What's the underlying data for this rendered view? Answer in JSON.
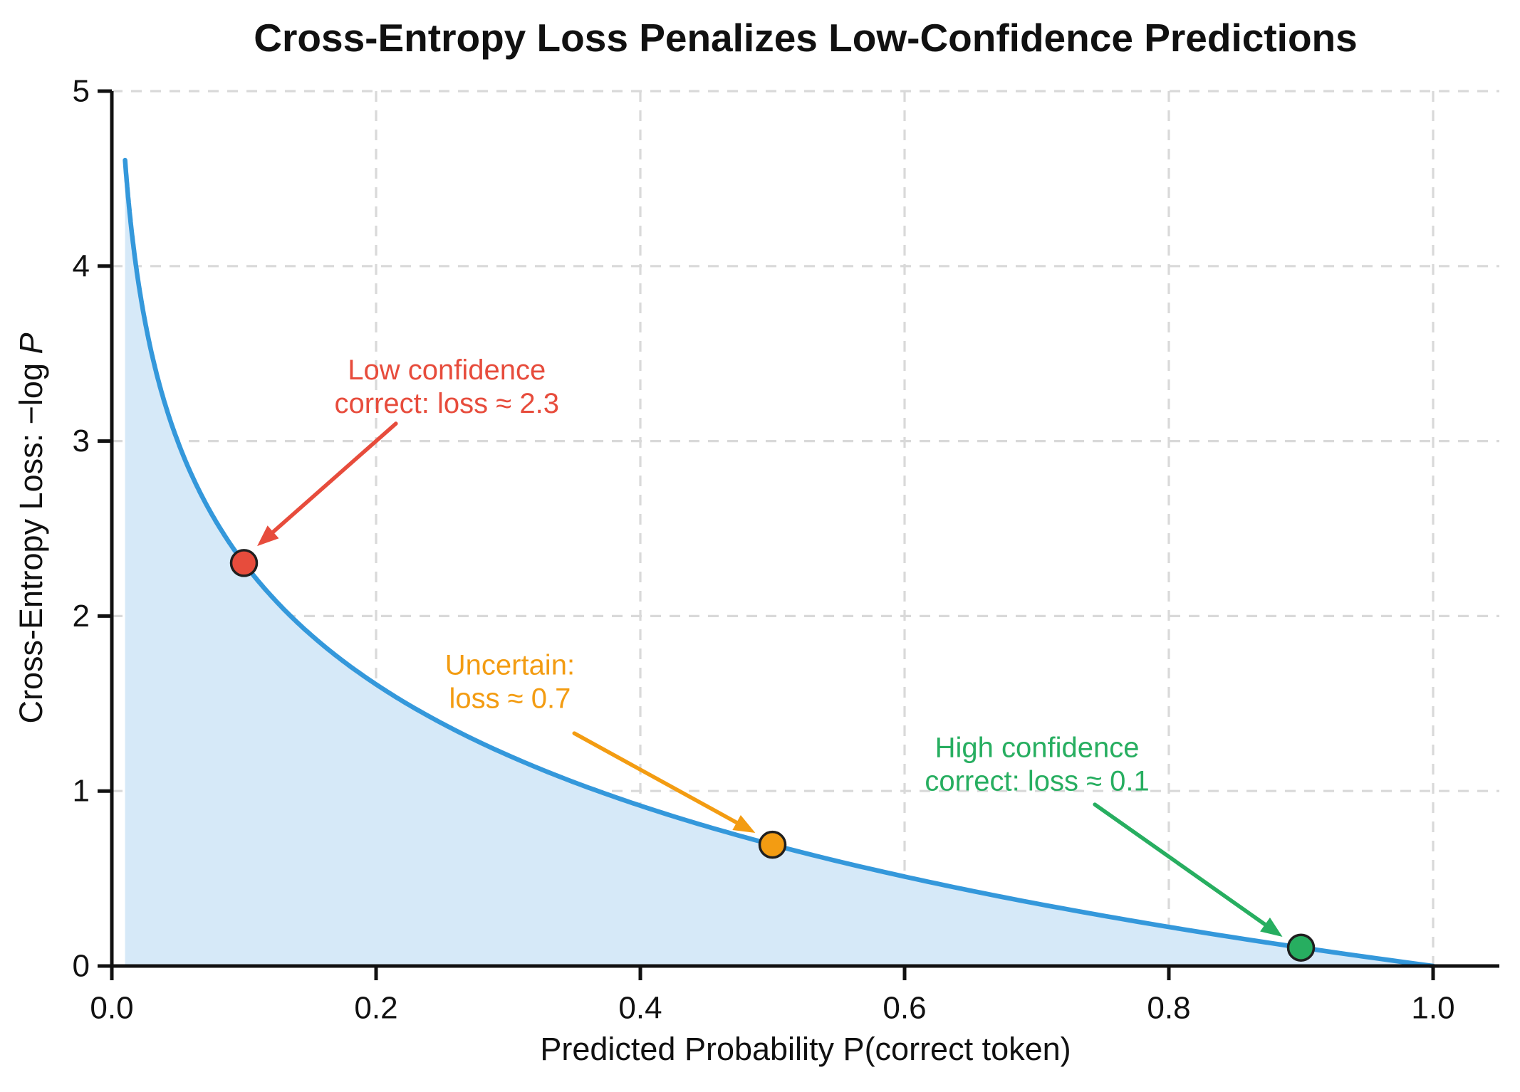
{
  "page": {
    "title": "Cross-Entropy Loss Penalizes Low-Confidence Predictions"
  },
  "chart_data": {
    "type": "line",
    "title": "Cross-Entropy Loss Penalizes Low-Confidence Predictions",
    "xlabel": "Predicted Probability P(correct token)",
    "ylabel_prefix": "Cross-Entropy Loss: −log ",
    "ylabel_var": "P",
    "xlim": [
      0,
      1.05
    ],
    "ylim": [
      0,
      5
    ],
    "grid": {
      "show": true,
      "x_values": [
        0.2,
        0.4,
        0.6,
        0.8,
        1.0
      ],
      "y_values": [
        1,
        2,
        3,
        4,
        5
      ]
    },
    "xticks": [
      {
        "value": 0.0,
        "label": "0.0"
      },
      {
        "value": 0.2,
        "label": "0.2"
      },
      {
        "value": 0.4,
        "label": "0.4"
      },
      {
        "value": 0.6,
        "label": "0.6"
      },
      {
        "value": 0.8,
        "label": "0.8"
      },
      {
        "value": 1.0,
        "label": "1.0"
      }
    ],
    "yticks": [
      {
        "value": 0,
        "label": "0"
      },
      {
        "value": 1,
        "label": "1"
      },
      {
        "value": 2,
        "label": "2"
      },
      {
        "value": 3,
        "label": "3"
      },
      {
        "value": 4,
        "label": "4"
      },
      {
        "value": 5,
        "label": "5"
      }
    ],
    "curve": {
      "name": "cross_entropy_loss",
      "formula": "loss = −log(p)",
      "p_min": 0.01,
      "p_max": 1.0,
      "samples": [
        {
          "p": 0.01,
          "loss": 4.61
        },
        {
          "p": 0.02,
          "loss": 3.91
        },
        {
          "p": 0.05,
          "loss": 3.0
        },
        {
          "p": 0.1,
          "loss": 2.3
        },
        {
          "p": 0.15,
          "loss": 1.9
        },
        {
          "p": 0.2,
          "loss": 1.61
        },
        {
          "p": 0.3,
          "loss": 1.2
        },
        {
          "p": 0.4,
          "loss": 0.92
        },
        {
          "p": 0.5,
          "loss": 0.69
        },
        {
          "p": 0.6,
          "loss": 0.51
        },
        {
          "p": 0.7,
          "loss": 0.36
        },
        {
          "p": 0.8,
          "loss": 0.22
        },
        {
          "p": 0.9,
          "loss": 0.11
        },
        {
          "p": 1.0,
          "loss": 0.0
        }
      ]
    },
    "points": [
      {
        "p": 0.1,
        "loss": 2.303,
        "color": "#e74c3c",
        "label_lines": [
          "Low confidence",
          "correct: loss ≈ 2.3"
        ],
        "text_pos": {
          "p": 0.2535,
          "loss": 3.31
        },
        "arrow": {
          "from": {
            "p": 0.215,
            "loss": 3.1
          },
          "to": {
            "p": 0.11,
            "loss": 2.4
          }
        }
      },
      {
        "p": 0.5,
        "loss": 0.693,
        "color": "#f39c12",
        "label_lines": [
          "Uncertain:",
          "loss ≈ 0.7"
        ],
        "text_pos": {
          "p": 0.3013,
          "loss": 1.623
        },
        "arrow": {
          "from": {
            "p": 0.35,
            "loss": 1.33
          },
          "to": {
            "p": 0.487,
            "loss": 0.761
          }
        }
      },
      {
        "p": 0.9,
        "loss": 0.105,
        "color": "#27ae60",
        "label_lines": [
          "High confidence",
          "correct: loss ≈ 0.1"
        ],
        "text_pos": {
          "p": 0.7003,
          "loss": 1.151
        },
        "arrow": {
          "from": {
            "p": 0.744,
            "loss": 0.923
          },
          "to": {
            "p": 0.886,
            "loss": 0.167
          }
        }
      }
    ],
    "colors": {
      "curve": "#3498db",
      "fill": "#d6e9f8",
      "grid": "#d9d9d9",
      "axis": "#111111",
      "marker_edge": "#1f1f1f"
    }
  }
}
